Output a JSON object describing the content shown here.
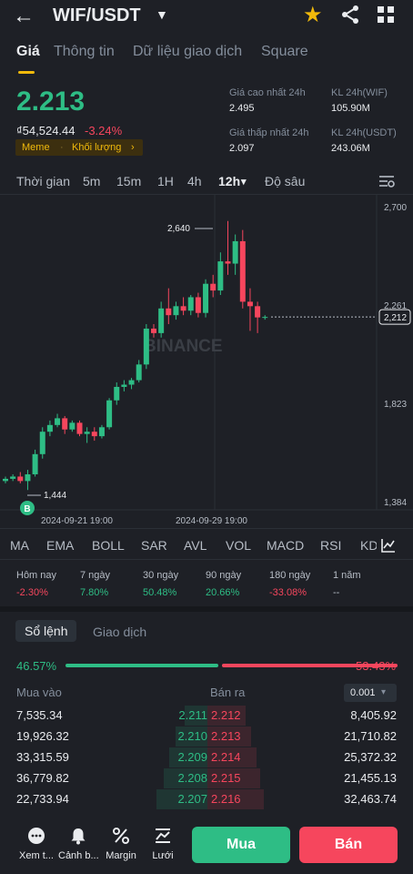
{
  "header": {
    "pair": "WIF/USDT",
    "icons": {
      "back": "arrow-left-icon",
      "caret": "caret-down-icon",
      "favorite": "star-icon",
      "share": "share-icon",
      "more": "grid-icon"
    }
  },
  "tabs": [
    "Giá",
    "Thông tin",
    "Dữ liệu giao dịch",
    "Square"
  ],
  "ticker": {
    "last_price": "2.213",
    "fiat_price": "₫54,524.44",
    "change_pct": "-3.24%",
    "tag_1": "Meme",
    "tag_2": "Khối lượng",
    "tag_chevron": "›",
    "high_label": "Giá cao nhất 24h",
    "high_value": "2.495",
    "low_label": "Giá thấp nhất 24h",
    "low_value": "2.097",
    "vol_base_label": "KL 24h(WIF)",
    "vol_base_value": "105.90M",
    "vol_quote_label": "KL 24h(USDT)",
    "vol_quote_value": "243.06M"
  },
  "timeframes": [
    "Thời gian",
    "15m",
    "1H",
    "4h",
    "12h",
    "Độ sâu"
  ],
  "timeframe_extra": "5m",
  "timeframe_active": "12h",
  "timeframe_active_caret": "▾",
  "chart_data": {
    "type": "candlestick",
    "y_ticks": [
      "2,700",
      "2,261",
      "1,823",
      "1,384"
    ],
    "ylim": [
      1.384,
      2.7
    ],
    "x_ticks": [
      "2024-09-21 19:00",
      "2024-09-29 19:00"
    ],
    "last_price_label": "2,212",
    "high_marker": "2,640",
    "low_marker": "1,444",
    "buy_marker": "B",
    "watermark": "BINANCE",
    "candles": [
      {
        "o": 1.48,
        "h": 1.5,
        "l": 1.47,
        "c": 1.49
      },
      {
        "o": 1.49,
        "h": 1.51,
        "l": 1.48,
        "c": 1.5
      },
      {
        "o": 1.5,
        "h": 1.52,
        "l": 1.47,
        "c": 1.48
      },
      {
        "o": 1.48,
        "h": 1.53,
        "l": 1.44,
        "c": 1.51
      },
      {
        "o": 1.51,
        "h": 1.62,
        "l": 1.5,
        "c": 1.6
      },
      {
        "o": 1.6,
        "h": 1.72,
        "l": 1.58,
        "c": 1.7
      },
      {
        "o": 1.7,
        "h": 1.75,
        "l": 1.68,
        "c": 1.73
      },
      {
        "o": 1.73,
        "h": 1.78,
        "l": 1.72,
        "c": 1.76
      },
      {
        "o": 1.76,
        "h": 1.77,
        "l": 1.69,
        "c": 1.71
      },
      {
        "o": 1.71,
        "h": 1.75,
        "l": 1.7,
        "c": 1.74
      },
      {
        "o": 1.74,
        "h": 1.75,
        "l": 1.68,
        "c": 1.69
      },
      {
        "o": 1.69,
        "h": 1.72,
        "l": 1.65,
        "c": 1.7
      },
      {
        "o": 1.7,
        "h": 1.72,
        "l": 1.66,
        "c": 1.68
      },
      {
        "o": 1.68,
        "h": 1.73,
        "l": 1.67,
        "c": 1.72
      },
      {
        "o": 1.72,
        "h": 1.85,
        "l": 1.71,
        "c": 1.84
      },
      {
        "o": 1.84,
        "h": 1.92,
        "l": 1.82,
        "c": 1.9
      },
      {
        "o": 1.9,
        "h": 1.93,
        "l": 1.88,
        "c": 1.91
      },
      {
        "o": 1.91,
        "h": 1.94,
        "l": 1.89,
        "c": 1.93
      },
      {
        "o": 1.93,
        "h": 2.02,
        "l": 1.92,
        "c": 2.0
      },
      {
        "o": 2.0,
        "h": 2.18,
        "l": 1.98,
        "c": 2.16
      },
      {
        "o": 2.16,
        "h": 2.18,
        "l": 2.12,
        "c": 2.14
      },
      {
        "o": 2.14,
        "h": 2.28,
        "l": 2.12,
        "c": 2.25
      },
      {
        "o": 2.25,
        "h": 2.34,
        "l": 2.18,
        "c": 2.22
      },
      {
        "o": 2.22,
        "h": 2.28,
        "l": 2.2,
        "c": 2.26
      },
      {
        "o": 2.26,
        "h": 2.3,
        "l": 2.22,
        "c": 2.24
      },
      {
        "o": 2.24,
        "h": 2.31,
        "l": 2.22,
        "c": 2.3
      },
      {
        "o": 2.3,
        "h": 2.32,
        "l": 2.21,
        "c": 2.23
      },
      {
        "o": 2.23,
        "h": 2.38,
        "l": 2.21,
        "c": 2.36
      },
      {
        "o": 2.36,
        "h": 2.4,
        "l": 2.3,
        "c": 2.33
      },
      {
        "o": 2.33,
        "h": 2.5,
        "l": 2.31,
        "c": 2.46
      },
      {
        "o": 2.46,
        "h": 2.64,
        "l": 2.4,
        "c": 2.45
      },
      {
        "o": 2.45,
        "h": 2.58,
        "l": 2.4,
        "c": 2.55
      },
      {
        "o": 2.55,
        "h": 2.6,
        "l": 2.25,
        "c": 2.28
      },
      {
        "o": 2.28,
        "h": 2.34,
        "l": 2.15,
        "c": 2.26
      },
      {
        "o": 2.26,
        "h": 2.28,
        "l": 2.14,
        "c": 2.21
      },
      {
        "o": 2.21,
        "h": 2.22,
        "l": 2.2,
        "c": 2.212
      }
    ]
  },
  "indicators": [
    "MA",
    "EMA",
    "BOLL",
    "SAR",
    "AVL",
    "VOL",
    "MACD",
    "RSI",
    "KD"
  ],
  "indicator_icon": "chart-settings-icon",
  "performance": [
    {
      "label": "Hôm nay",
      "value": "-2.30%",
      "dir": "down"
    },
    {
      "label": "7 ngày",
      "value": "7.80%",
      "dir": "up"
    },
    {
      "label": "30 ngày",
      "value": "50.48%",
      "dir": "up"
    },
    {
      "label": "90 ngày",
      "value": "20.66%",
      "dir": "up"
    },
    {
      "label": "180 ngày",
      "value": "-33.08%",
      "dir": "down"
    },
    {
      "label": "1 năm",
      "value": "--",
      "dir": "flat"
    }
  ],
  "orderbook": {
    "tabs": [
      "Sổ lệnh",
      "Giao dịch"
    ],
    "bid_pct": "46.57%",
    "ask_pct": "53.43%",
    "bid_fraction": 0.4657,
    "col_bid": "Mua vào",
    "col_ask": "Bán ra",
    "step": "0.001",
    "step_caret": "▾",
    "rows": [
      {
        "bid_qty": "7,535.34",
        "bid_px": "2.211",
        "ask_px": "2.212",
        "ask_qty": "8,405.92"
      },
      {
        "bid_qty": "19,926.32",
        "bid_px": "2.210",
        "ask_px": "2.213",
        "ask_qty": "21,710.82"
      },
      {
        "bid_qty": "33,315.59",
        "bid_px": "2.209",
        "ask_px": "2.214",
        "ask_qty": "25,372.32"
      },
      {
        "bid_qty": "36,779.82",
        "bid_px": "2.208",
        "ask_px": "2.215",
        "ask_qty": "21,455.13"
      },
      {
        "bid_qty": "22,733.94",
        "bid_px": "2.207",
        "ask_px": "2.216",
        "ask_qty": "32,463.74"
      }
    ]
  },
  "bottom_nav": [
    {
      "label": "Xem t...",
      "icon": "chat-icon"
    },
    {
      "label": "Cảnh b...",
      "icon": "bell-icon"
    },
    {
      "label": "Margin",
      "icon": "percent-icon"
    },
    {
      "label": "Lưới",
      "icon": "grid-bot-icon"
    }
  ],
  "actions": {
    "buy": "Mua",
    "sell": "Bán"
  }
}
